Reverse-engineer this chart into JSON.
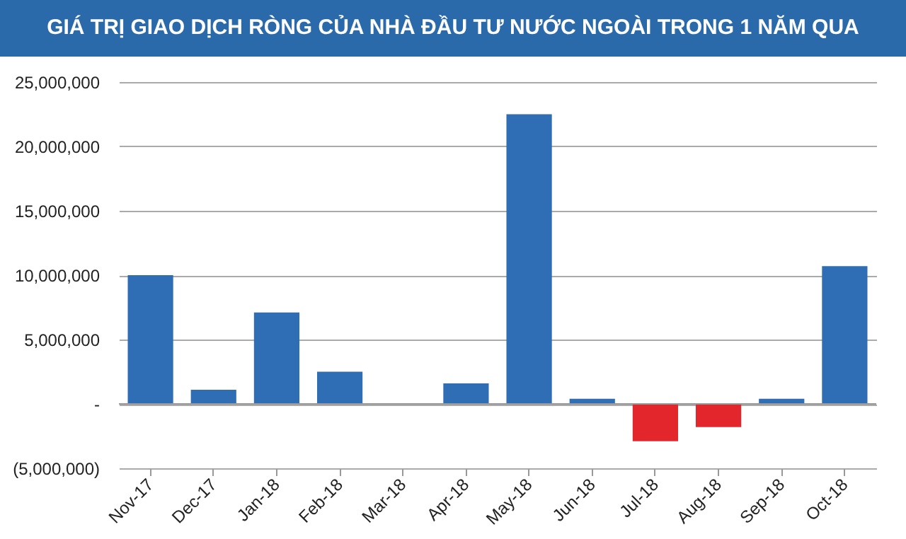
{
  "chart_data": {
    "type": "bar",
    "title": "GIÁ TRỊ GIAO DỊCH RÒNG CỦA NHÀ ĐẦU TƯ NƯỚC NGOÀI TRONG 1 NĂM QUA",
    "categories": [
      "Nov-17",
      "Dec-17",
      "Jan-18",
      "Feb-18",
      "Mar-18",
      "Apr-18",
      "May-18",
      "Jun-18",
      "Jul-18",
      "Aug-18",
      "Sep-18",
      "Oct-18"
    ],
    "values": [
      10000000,
      1100000,
      7100000,
      2500000,
      0,
      1600000,
      22500000,
      400000,
      -2900000,
      -1800000,
      400000,
      10700000
    ],
    "colors": [
      "#2f6db5",
      "#2f6db5",
      "#2f6db5",
      "#2f6db5",
      "#2f6db5",
      "#2f6db5",
      "#2f6db5",
      "#2f6db5",
      "#e3262b",
      "#e3262b",
      "#2f6db5",
      "#2f6db5"
    ],
    "ylim": [
      -5000000,
      25000000
    ],
    "yticks": [
      {
        "value": -5000000,
        "label": "(5,000,000)"
      },
      {
        "value": 0,
        "label": "-"
      },
      {
        "value": 5000000,
        "label": "5,000,000"
      },
      {
        "value": 10000000,
        "label": "10,000,000"
      },
      {
        "value": 15000000,
        "label": "15,000,000"
      },
      {
        "value": 20000000,
        "label": "20,000,000"
      },
      {
        "value": 25000000,
        "label": "25,000,000"
      }
    ],
    "grid": "y"
  }
}
